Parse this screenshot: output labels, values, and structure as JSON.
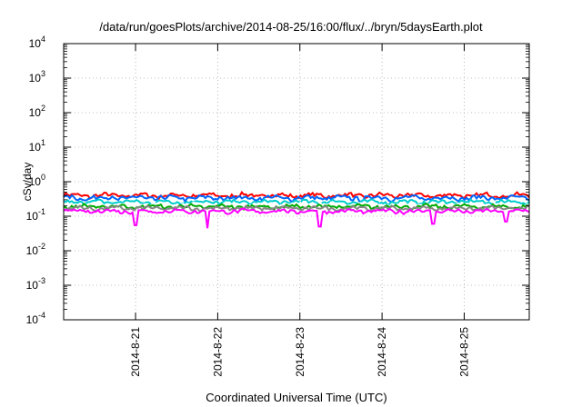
{
  "chart_data": {
    "type": "line",
    "title": "/data/run/goesPlots/archive/2014-08-25/16:00/flux/../bryn/5daysEarth.plot",
    "xlabel": "Coordinated Universal Time (UTC)",
    "ylabel": "cSv/day",
    "yscale": "log",
    "ylim": [
      0.0001,
      10000
    ],
    "xlim": [
      "2014-08-20 03:00",
      "2014-08-25 19:00"
    ],
    "grid": true,
    "x_ticks": [
      "2014-8-21",
      "2014-8-22",
      "2014-8-23",
      "2014-8-24",
      "2014-8-25"
    ],
    "y_ticks": [
      {
        "base": "10",
        "exp": "-4"
      },
      {
        "base": "10",
        "exp": "-3"
      },
      {
        "base": "10",
        "exp": "-2"
      },
      {
        "base": "10",
        "exp": "-1"
      },
      {
        "base": "10",
        "exp": "0"
      },
      {
        "base": "10",
        "exp": "1"
      },
      {
        "base": "10",
        "exp": "2"
      },
      {
        "base": "10",
        "exp": "3"
      },
      {
        "base": "10",
        "exp": "4"
      }
    ],
    "series": [
      {
        "color": "#ff0000",
        "base": 0.4,
        "amp": 0.07,
        "dips": []
      },
      {
        "color": "#0066ff",
        "base": 0.34,
        "amp": 0.06,
        "dips": []
      },
      {
        "color": "#00cccc",
        "base": 0.26,
        "amp": 0.04,
        "dips": []
      },
      {
        "color": "#ffffff",
        "base": 0.21,
        "amp": 0.03,
        "dips": []
      },
      {
        "color": "#00aa00",
        "base": 0.19,
        "amp": 0.03,
        "dips": []
      },
      {
        "color": "#888888",
        "base": 0.17,
        "amp": 0.025,
        "dips": []
      },
      {
        "color": "#ff00ff",
        "base": 0.14,
        "amp": 0.02,
        "dips": [
          {
            "x": "2014-8-21 00:00",
            "y": 0.055
          },
          {
            "x": "2014-8-21 21:00",
            "y": 0.045
          },
          {
            "x": "2014-8-23 06:00",
            "y": 0.05
          },
          {
            "x": "2014-8-24 15:00",
            "y": 0.06
          },
          {
            "x": "2014-8-25 12:00",
            "y": 0.07
          }
        ]
      }
    ]
  }
}
